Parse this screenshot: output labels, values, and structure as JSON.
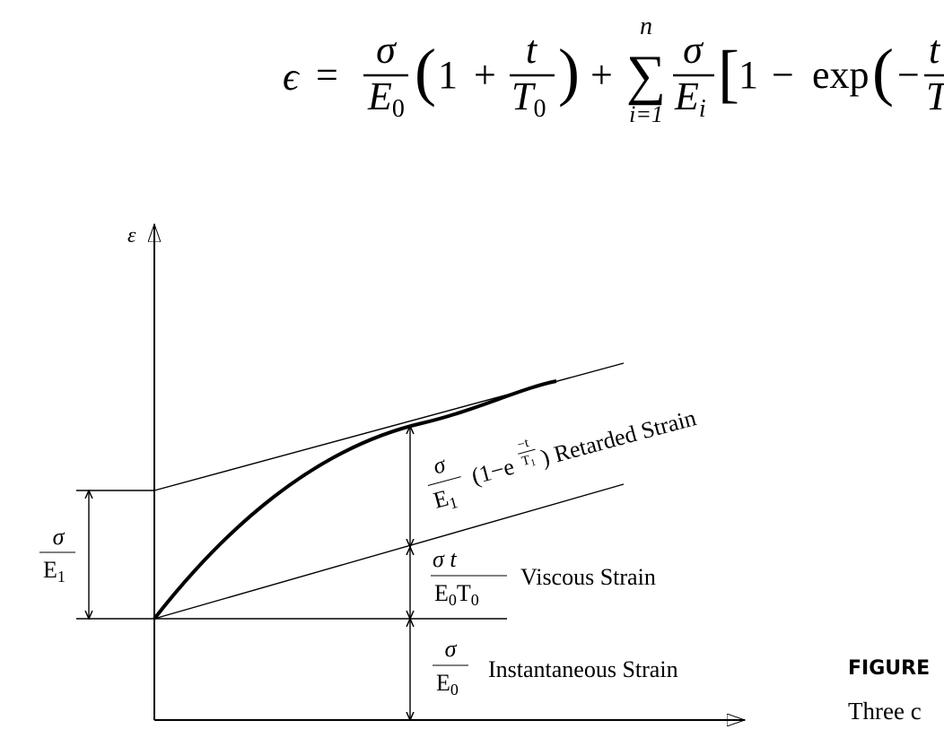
{
  "equation": {
    "lhs": "ϵ",
    "eq": "=",
    "t1_num": "σ",
    "t1_den": "E",
    "t1_den_sub": "0",
    "paren1_open": "(",
    "one": "1",
    "plus": "+",
    "t2_num": "t",
    "t2_den": "T",
    "t2_den_sub": "0",
    "paren1_close": ")",
    "plus2": "+",
    "sum": "∑",
    "sum_upper": "n",
    "sum_lower": "i=1",
    "t3_num": "σ",
    "t3_den": "E",
    "t3_den_sub": "i",
    "bracket_open": "[",
    "one2": "1",
    "minus": "−",
    "exp": "exp",
    "paren2_open": "(",
    "minus2": "−",
    "t4_num": "t",
    "t4_den": "T"
  },
  "diagram": {
    "axis_label": "ε",
    "left": {
      "num": "σ",
      "den": "E",
      "den_sub": "1"
    },
    "retarded": {
      "num": "σ",
      "den": "E",
      "den_sub": "1",
      "prefix": "(1−e",
      "exp_num": "−t",
      "exp_den": "T",
      "exp_den_sub": "1",
      "suffix": ") Retarded Strain"
    },
    "viscous": {
      "num": "σ t",
      "den": "E",
      "den_sub": "0",
      "den2": "T",
      "den2_sub": "0",
      "text": "Viscous Strain"
    },
    "instantaneous": {
      "num": "σ",
      "den": "E",
      "den_sub": "0",
      "text": "Instantaneous Strain"
    }
  },
  "caption": {
    "label": "FIGURE",
    "text": "Three c"
  }
}
